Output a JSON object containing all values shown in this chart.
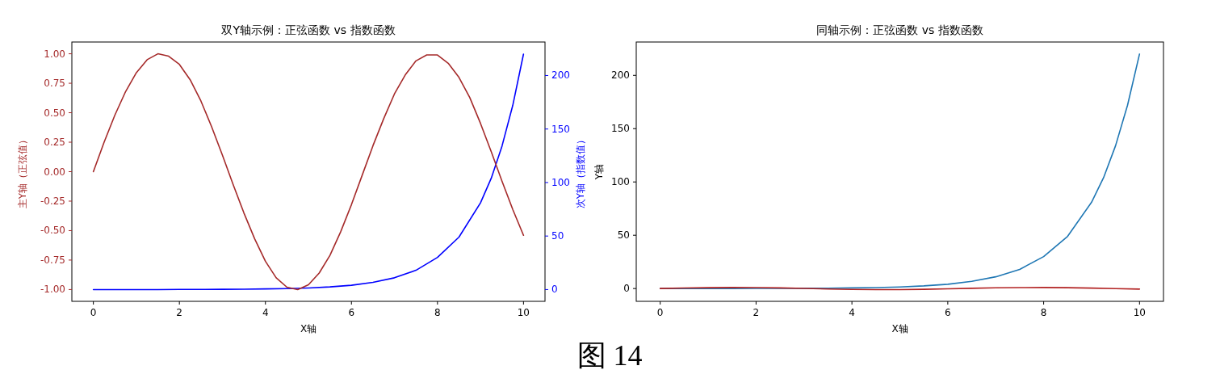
{
  "chart_data": [
    {
      "type": "line",
      "title": "双Y轴示例：正弦函数 vs 指数函数",
      "xlabel": "X轴",
      "ylabel": "主Y轴（正弦值）",
      "y2label": "次Y轴（指数值）",
      "xlim": [
        -0.5,
        10.5
      ],
      "xticks": [
        0,
        2,
        4,
        6,
        8,
        10
      ],
      "ylim": [
        -1.1,
        1.1
      ],
      "yticks": [
        {
          "value": -1,
          "label": "-1.00"
        },
        {
          "value": -0.75,
          "label": "-0.75"
        },
        {
          "value": -0.5,
          "label": "-0.50"
        },
        {
          "value": -0.25,
          "label": "-0.25"
        },
        {
          "value": 0,
          "label": "0.00"
        },
        {
          "value": 0.25,
          "label": "0.25"
        },
        {
          "value": 0.5,
          "label": "0.50"
        },
        {
          "value": 0.75,
          "label": "0.75"
        },
        {
          "value": 1,
          "label": "1.00"
        }
      ],
      "y2lim": [
        -11,
        231.3
      ],
      "y2ticks": [
        0,
        50,
        100,
        150,
        200
      ],
      "annotations": [
        "图 14"
      ],
      "series": [
        {
          "color": "#a52a2a",
          "x": [
            0,
            0.25,
            0.5,
            0.75,
            1,
            1.25,
            1.5,
            1.75,
            2,
            2.25,
            2.5,
            2.75,
            3,
            3.25,
            3.5,
            3.75,
            4,
            4.25,
            4.5,
            4.75,
            5,
            5.25,
            5.5,
            5.75,
            6,
            6.25,
            6.5,
            6.75,
            7,
            7.25,
            7.5,
            7.75,
            8,
            8.25,
            8.5,
            8.75,
            9,
            9.25,
            9.5,
            9.75,
            10
          ],
          "values": [
            0,
            0.25,
            0.48,
            0.68,
            0.84,
            0.95,
            1.0,
            0.98,
            0.91,
            0.78,
            0.6,
            0.38,
            0.14,
            -0.11,
            -0.35,
            -0.57,
            -0.76,
            -0.9,
            -0.98,
            -1.0,
            -0.96,
            -0.86,
            -0.71,
            -0.51,
            -0.28,
            -0.03,
            0.22,
            0.45,
            0.66,
            0.82,
            0.94,
            0.99,
            0.99,
            0.92,
            0.8,
            0.63,
            0.41,
            0.17,
            -0.08,
            -0.32,
            -0.54
          ]
        },
        {
          "color": "#0000ff",
          "axis": "y2",
          "x": [
            0,
            0.5,
            1,
            1.5,
            2,
            2.5,
            3,
            3.5,
            4,
            4.5,
            5,
            5.5,
            6,
            6.5,
            7,
            7.5,
            8,
            8.5,
            9,
            9.25,
            9.5,
            9.75,
            10
          ],
          "values": [
            0,
            0,
            0,
            0,
            0.1,
            0.1,
            0.2,
            0.3,
            0.6,
            0.9,
            1.5,
            2.5,
            4,
            6.7,
            11,
            18,
            30,
            49,
            81,
            104,
            134,
            172,
            220
          ]
        }
      ]
    },
    {
      "type": "line",
      "title": "同轴示例：正弦函数 vs 指数函数",
      "xlabel": "X轴",
      "ylabel": "Y轴",
      "xlim": [
        -0.5,
        10.5
      ],
      "xticks": [
        0,
        2,
        4,
        6,
        8,
        10
      ],
      "ylim": [
        -12,
        231.3
      ],
      "yticks": [
        0,
        50,
        100,
        150,
        200
      ],
      "series": [
        {
          "color": "#b22222",
          "x": [
            0,
            0.5,
            1,
            1.5,
            2,
            2.5,
            3,
            3.5,
            4,
            4.5,
            5,
            5.5,
            6,
            6.5,
            7,
            7.5,
            8,
            8.5,
            9,
            9.5,
            10
          ],
          "values": [
            0,
            0.5,
            0.8,
            1,
            0.9,
            0.6,
            0.1,
            -0.4,
            -0.8,
            -1,
            -1,
            -0.7,
            -0.3,
            0.2,
            0.7,
            0.9,
            1,
            0.8,
            0.4,
            -0.1,
            -0.5
          ]
        },
        {
          "color": "#1f77b4",
          "x": [
            0,
            0.5,
            1,
            1.5,
            2,
            2.5,
            3,
            3.5,
            4,
            4.5,
            5,
            5.5,
            6,
            6.5,
            7,
            7.5,
            8,
            8.5,
            9,
            9.25,
            9.5,
            9.75,
            10
          ],
          "values": [
            0,
            0,
            0,
            0,
            0.1,
            0.1,
            0.2,
            0.3,
            0.6,
            0.9,
            1.5,
            2.5,
            4,
            6.7,
            11,
            18,
            30,
            49,
            81,
            104,
            134,
            172,
            220
          ]
        }
      ]
    }
  ]
}
